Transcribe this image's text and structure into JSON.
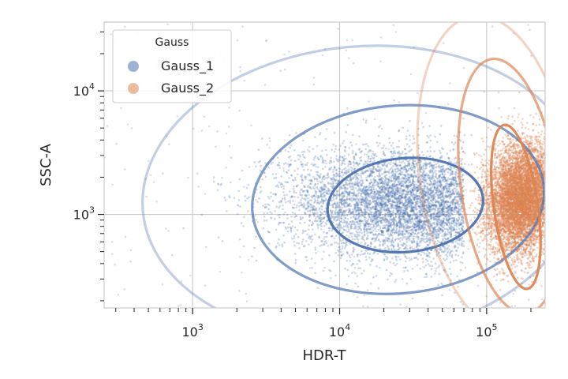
{
  "chart_data": {
    "type": "scatter",
    "title": "",
    "xlabel": "HDR-T",
    "ylabel": "SSC-A",
    "xscale": "log",
    "yscale": "log",
    "xlim": [
      250,
      250000
    ],
    "ylim": [
      175,
      36000
    ],
    "x_ticks": [
      {
        "value": 1000,
        "base": "10",
        "exp": "3"
      },
      {
        "value": 10000,
        "base": "10",
        "exp": "4"
      },
      {
        "value": 100000,
        "base": "10",
        "exp": "5"
      }
    ],
    "y_ticks": [
      {
        "value": 1000,
        "base": "10",
        "exp": "3"
      },
      {
        "value": 10000,
        "base": "10",
        "exp": "4"
      }
    ],
    "grid": true,
    "legend": {
      "title": "Gauss",
      "placement": "top-left",
      "entries": [
        "Gauss_1",
        "Gauss_2"
      ]
    },
    "series": [
      {
        "name": "Gauss_1",
        "color": "#4c72b0",
        "n_points": 5500,
        "center": [
          30000,
          1200
        ],
        "log10_sd": [
          0.42,
          0.22
        ],
        "rotation_deg": -5,
        "x_max": 70000,
        "contours": [
          {
            "center": [
              28000,
              1190
            ],
            "width_decades": 1.06,
            "height_decades": 0.76,
            "rotation_deg": -5,
            "opacity": 0.95
          },
          {
            "center": [
              25000,
              1320
            ],
            "width_decades": 1.99,
            "height_decades": 1.52,
            "rotation_deg": -5,
            "opacity": 0.7
          },
          {
            "center": [
              14000,
              1510
            ],
            "width_decades": 2.98,
            "height_decades": 2.36,
            "rotation_deg": -5,
            "opacity": 0.35
          }
        ]
      },
      {
        "name": "Gauss_2",
        "color": "#dd8452",
        "n_points": 7000,
        "center": [
          175000,
          1350
        ],
        "log10_sd": [
          0.12,
          0.22
        ],
        "rotation_deg": -8,
        "x_min": 60000,
        "contours": [
          {
            "center": [
              158000,
              1150
            ],
            "width_decades": 0.3,
            "height_decades": 1.34,
            "rotation_deg": -8,
            "opacity": 0.95
          },
          {
            "center": [
              143000,
              1690
            ],
            "width_decades": 0.66,
            "height_decades": 2.08,
            "rotation_deg": -8,
            "opacity": 0.7
          },
          {
            "center": [
              115000,
              2090
            ],
            "width_decades": 1.03,
            "height_decades": 2.6,
            "rotation_deg": -8,
            "opacity": 0.35
          }
        ]
      }
    ]
  }
}
